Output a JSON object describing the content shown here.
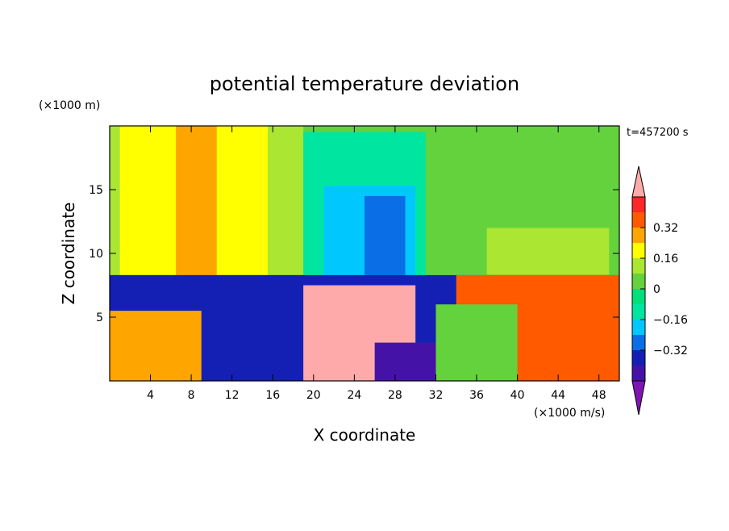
{
  "chart_data": {
    "type": "heatmap",
    "title": "potential temperature deviation",
    "xlabel": "X coordinate",
    "ylabel": "Z coordinate",
    "x_unit": "(×1000 m/s)",
    "y_unit": "(×1000 m)",
    "time_label": "t=457200 s",
    "xlim": [
      0,
      50
    ],
    "ylim": [
      0,
      20
    ],
    "x_ticks": [
      4,
      8,
      12,
      16,
      20,
      24,
      28,
      32,
      36,
      40,
      44,
      48
    ],
    "y_ticks": [
      5,
      10,
      15
    ],
    "colorbar": {
      "levels": [
        -0.48,
        -0.4,
        -0.32,
        -0.24,
        -0.16,
        -0.08,
        0,
        0.08,
        0.16,
        0.24,
        0.32,
        0.4,
        0.48
      ],
      "tick_values": [
        0.32,
        0.16,
        0,
        -0.16,
        -0.32
      ],
      "tick_labels": [
        "0.32",
        "0.16",
        "0",
        "−0.16",
        "−0.32"
      ],
      "colors": [
        "#7f14b4",
        "#4512a8",
        "#1420b4",
        "#0a6ee6",
        "#00c8ff",
        "#00e6a0",
        "#00e07a",
        "#64d23c",
        "#aae632",
        "#ffff00",
        "#ffa500",
        "#ff5a00",
        "#ff2828",
        "#ffaaaa"
      ]
    },
    "regions": [
      {
        "x0": 0,
        "x1": 50,
        "y0": 8.3,
        "y1": 20,
        "level": 0.0
      },
      {
        "x0": 0,
        "x1": 4,
        "y0": 8.3,
        "y1": 20,
        "level": 0.08
      },
      {
        "x0": 1,
        "x1": 7,
        "y0": 8.3,
        "y1": 20,
        "level": 0.16
      },
      {
        "x0": 6.5,
        "x1": 10.5,
        "y0": 8.3,
        "y1": 20,
        "level": 0.24
      },
      {
        "x0": 10.5,
        "x1": 16,
        "y0": 8.3,
        "y1": 20,
        "level": 0.16
      },
      {
        "x0": 15.5,
        "x1": 19,
        "y0": 8.3,
        "y1": 20,
        "level": 0.08
      },
      {
        "x0": 19,
        "x1": 31,
        "y0": 8.3,
        "y1": 19.5,
        "level": -0.16
      },
      {
        "x0": 21,
        "x1": 30,
        "y0": 8.3,
        "y1": 15.3,
        "level": -0.24
      },
      {
        "x0": 25,
        "x1": 29,
        "y0": 8.3,
        "y1": 14.5,
        "level": -0.32
      },
      {
        "x0": 37,
        "x1": 49,
        "y0": 8.3,
        "y1": 12,
        "level": 0.08
      },
      {
        "x0": 0,
        "x1": 50,
        "y0": 0,
        "y1": 8.3,
        "level": -0.4
      },
      {
        "x0": 19,
        "x1": 30,
        "y0": 0,
        "y1": 7.5,
        "level": 0.48
      },
      {
        "x0": 34,
        "x1": 50,
        "y0": 0,
        "y1": 8.3,
        "level": 0.32
      },
      {
        "x0": 0,
        "x1": 9,
        "y0": 0,
        "y1": 5.5,
        "level": 0.24
      },
      {
        "x0": 26,
        "x1": 34,
        "y0": 0,
        "y1": 3,
        "level": -0.48
      },
      {
        "x0": 32,
        "x1": 40,
        "y0": 0,
        "y1": 6,
        "level": 0.0
      }
    ]
  }
}
